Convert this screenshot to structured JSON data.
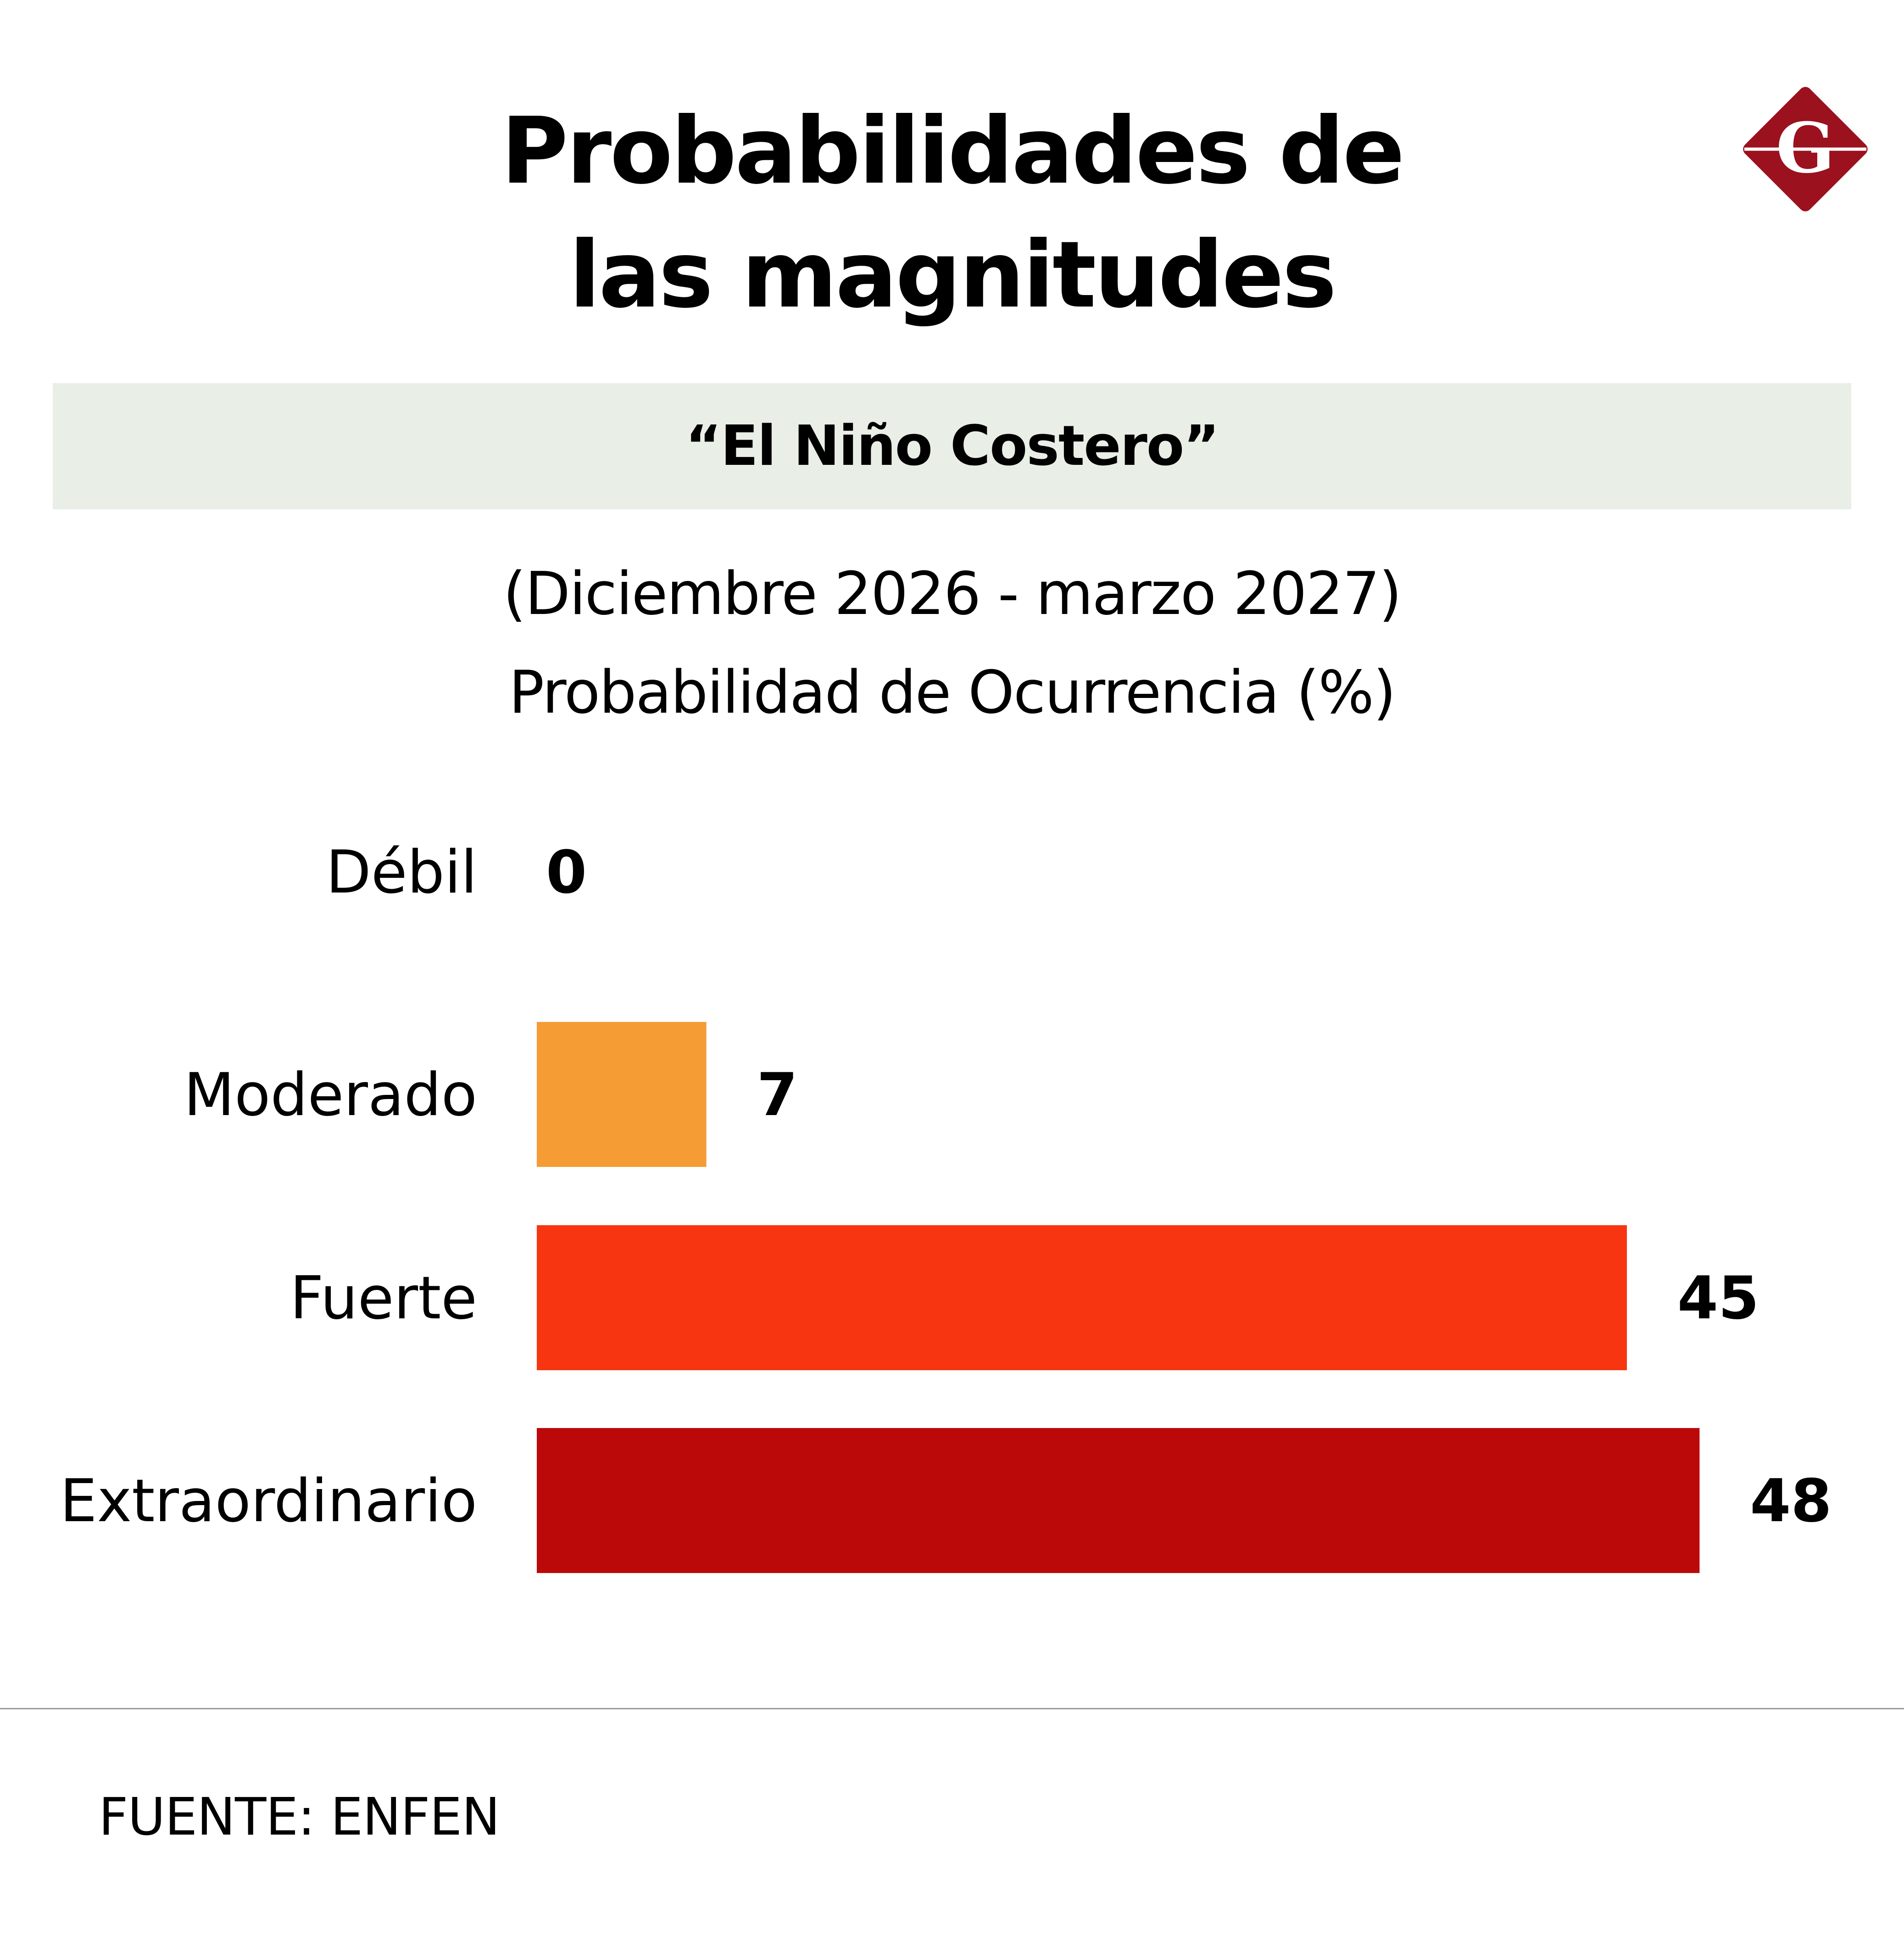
{
  "header": {
    "title_lines": [
      "Probabilidades de",
      "las magnitudes"
    ],
    "subtitle": "“El Niño Costero”",
    "period": "(Diciembre 2026 - marzo 2027)",
    "measure": "Probabilidad de Ocurrencia (%)"
  },
  "logo": {
    "letter": "G",
    "icon": "g-diamond-logo-icon",
    "color": "#9b111e"
  },
  "chart_data": {
    "type": "bar",
    "orientation": "horizontal",
    "categories": [
      "Débil",
      "Moderado",
      "Fuerte",
      "Extraordinario"
    ],
    "values": [
      0,
      7,
      45,
      48
    ],
    "colors": [
      "#f59c35",
      "#f59c35",
      "#f73510",
      "#bb090a"
    ],
    "xlim": [
      0,
      50
    ],
    "grid": false,
    "legend": "none"
  },
  "footer": {
    "source": "FUENTE: ENFEN"
  }
}
